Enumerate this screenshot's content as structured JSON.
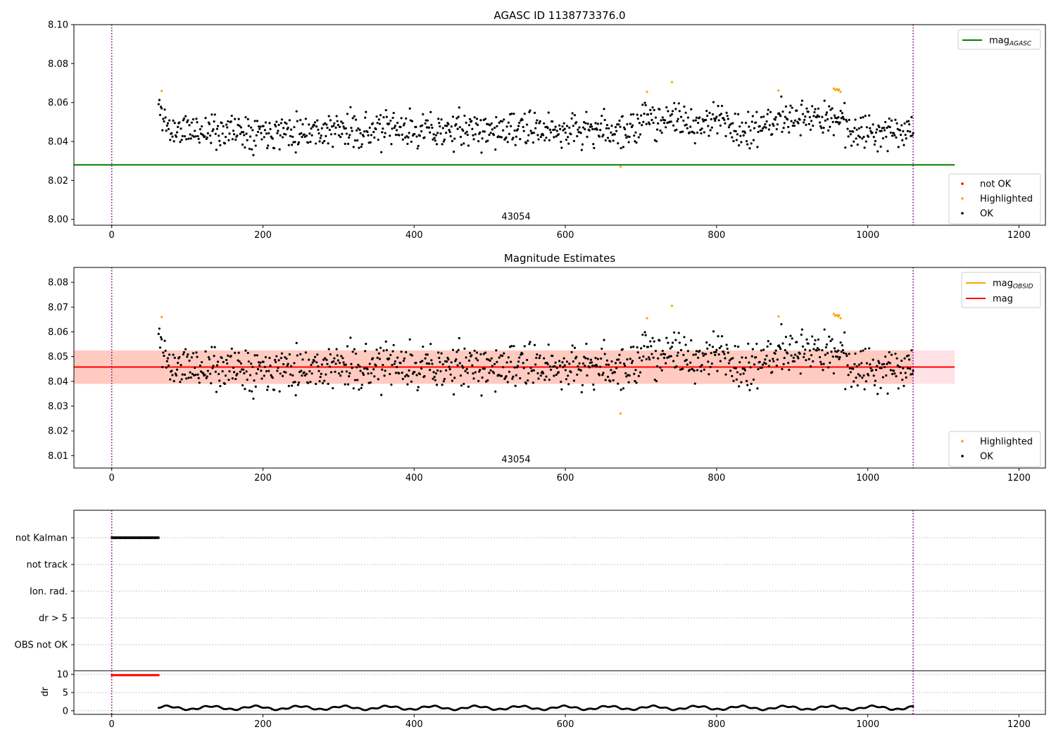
{
  "chart_data": [
    {
      "type": "scatter",
      "title": "AGASC ID 1138773376.0",
      "xlim": [
        -50,
        1235
      ],
      "ylim": [
        7.997,
        8.1
      ],
      "x_ticks": [
        "0",
        "200",
        "400",
        "600",
        "800",
        "1000",
        "1200"
      ],
      "y_ticks": [
        "8.00",
        "8.02",
        "8.04",
        "8.06",
        "8.08",
        "8.10"
      ],
      "annotation": "43054",
      "vlines": [
        0,
        1060
      ],
      "hlines": [
        {
          "name": "mag_AGASC",
          "y": 8.028,
          "x_range": [
            -50,
            1115
          ],
          "color": "#008000"
        }
      ],
      "legend_lines": [
        {
          "name": "mag",
          "subscript": "AGASC",
          "color": "#008000"
        }
      ],
      "legend_points": [
        {
          "name": "not OK",
          "color": "#ff0000"
        },
        {
          "name": "Highlighted",
          "color": "#ffa500"
        },
        {
          "name": "OK",
          "color": "#000000"
        }
      ],
      "series": [
        {
          "name": "OK",
          "color": "#000000",
          "generator": {
            "x_range": [
              62,
              1060
            ],
            "n": 980,
            "mean": 8.0458,
            "seed": 11
          }
        },
        {
          "name": "Highlighted",
          "color": "#ffa500",
          "points": [
            [
              66,
              8.066
            ],
            [
              673,
              8.027
            ],
            [
              708,
              8.0655
            ],
            [
              741,
              8.0705
            ],
            [
              882,
              8.0662
            ],
            [
              955,
              8.0672
            ],
            [
              957,
              8.0665
            ],
            [
              959,
              8.0668
            ],
            [
              961,
              8.0662
            ],
            [
              962,
              8.0667
            ],
            [
              964,
              8.0655
            ]
          ]
        }
      ]
    },
    {
      "type": "scatter",
      "title": "Magnitude Estimates",
      "xlim": [
        -50,
        1235
      ],
      "ylim": [
        8.005,
        8.086
      ],
      "x_ticks": [
        "0",
        "200",
        "400",
        "600",
        "800",
        "1000",
        "1200"
      ],
      "y_ticks": [
        "8.01",
        "8.02",
        "8.03",
        "8.04",
        "8.05",
        "8.06",
        "8.07",
        "8.08"
      ],
      "annotation": "43054",
      "vlines": [
        0,
        1060
      ],
      "bands": [
        {
          "y_range": [
            8.039,
            8.0525
          ],
          "x_range": [
            -50,
            1115
          ],
          "color": "#ffb6c1",
          "opacity": 0.4
        },
        {
          "y_range": [
            8.039,
            8.0525
          ],
          "x_range": [
            -50,
            1060
          ],
          "color": "#ffa07a",
          "opacity": 0.35
        }
      ],
      "hlines": [
        {
          "name": "mag_OBSID",
          "y": 8.0458,
          "x_range": [
            -50,
            1060
          ],
          "color": "#ffa500"
        },
        {
          "name": "mag",
          "y": 8.0458,
          "x_range": [
            -50,
            1115
          ],
          "color": "#ff0000"
        }
      ],
      "legend_lines": [
        {
          "name": "mag",
          "subscript": "OBSID",
          "color": "#ffa500"
        },
        {
          "name": "mag",
          "subscript": "",
          "color": "#ff0000"
        }
      ],
      "legend_points": [
        {
          "name": "Highlighted",
          "color": "#ffa500"
        },
        {
          "name": "OK",
          "color": "#000000"
        }
      ],
      "series": [
        {
          "name": "OK",
          "color": "#000000",
          "generator": {
            "x_range": [
              62,
              1060
            ],
            "n": 980,
            "mean": 8.0458,
            "seed": 11
          }
        },
        {
          "name": "Highlighted",
          "color": "#ffa500",
          "points": [
            [
              66,
              8.066
            ],
            [
              673,
              8.027
            ],
            [
              708,
              8.0655
            ],
            [
              741,
              8.0705
            ],
            [
              882,
              8.0662
            ],
            [
              955,
              8.0672
            ],
            [
              957,
              8.0665
            ],
            [
              959,
              8.0668
            ],
            [
              961,
              8.0662
            ],
            [
              962,
              8.0667
            ],
            [
              964,
              8.0655
            ]
          ]
        }
      ]
    },
    {
      "type": "scatter",
      "title": "",
      "xlim": [
        -50,
        1235
      ],
      "categories": [
        "not Kalman",
        "not track",
        "Ion. rad.",
        "dr > 5",
        "OBS not OK"
      ],
      "flags": [
        {
          "category": "not Kalman",
          "x_range": [
            0,
            62
          ]
        }
      ],
      "vlines": [
        0,
        1060
      ]
    },
    {
      "type": "scatter",
      "title": "",
      "xlim": [
        -50,
        1235
      ],
      "ylim": [
        -1,
        11
      ],
      "ylabel": "dr",
      "x_ticks": [
        "0",
        "200",
        "400",
        "600",
        "800",
        "1000",
        "1200"
      ],
      "y_ticks": [
        "0",
        "5",
        "10"
      ],
      "vlines": [
        0,
        1060
      ],
      "series": [
        {
          "name": "dr > 5",
          "color": "#ff0000",
          "x_range": [
            0,
            62
          ],
          "y": 9.8
        },
        {
          "name": "dr",
          "color": "#000000",
          "x_range": [
            62,
            1060
          ],
          "mean": 0.8
        }
      ]
    }
  ]
}
